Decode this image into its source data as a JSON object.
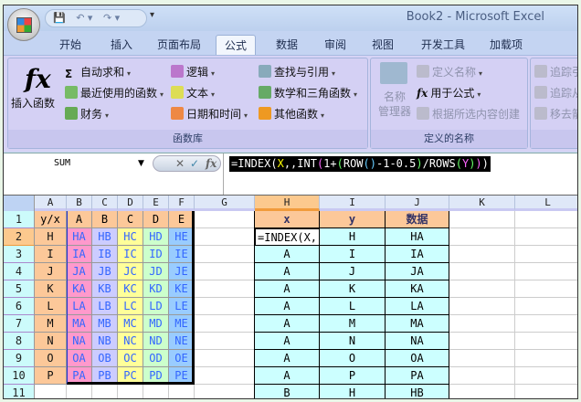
{
  "window": {
    "title": "Book2 - Microsoft Excel"
  },
  "qat": {
    "save": "💾",
    "undo": "↶ ▾",
    "redo": "↷ ▾",
    "more": "▾"
  },
  "tabs": [
    "开始",
    "插入",
    "页面布局",
    "公式",
    "数据",
    "审阅",
    "视图",
    "开发工具",
    "加载项"
  ],
  "active_tab": "公式",
  "ribbon": {
    "function_library": {
      "label": "函数库",
      "insert_function": "插入函数",
      "fx": "fx",
      "items": [
        "自动求和",
        "最近使用的函数",
        "财务",
        "逻辑",
        "文本",
        "日期和时间",
        "查找与引用",
        "数学和三角函数",
        "其他函数"
      ]
    },
    "defined_names": {
      "label": "定义的名称",
      "name_manager": "名称\n管理器",
      "define_name": "定义名称",
      "use_in_formula": "用于公式",
      "create_from_selection": "根据所选内容创建"
    },
    "auditing": {
      "items": [
        "追踪引",
        "追踪从",
        "移去箭"
      ]
    }
  },
  "formula_bar": {
    "name_box": "SUM",
    "cancel": "✕",
    "enter": "✓",
    "fx": "fx",
    "formula_parts": [
      [
        "=INDEX(",
        "#ffffff"
      ],
      [
        "X",
        "#ffff00"
      ],
      [
        ",,INT",
        "#ffffff"
      ],
      [
        "(",
        "#ff66ff"
      ],
      [
        "1+",
        "#ffffff"
      ],
      [
        "(",
        "#66ff66"
      ],
      [
        "ROW",
        "#ffffff"
      ],
      [
        "()",
        "#66ccff"
      ],
      [
        "-1-0.5",
        "#ffffff"
      ],
      [
        ")",
        "#66ff66"
      ],
      [
        "/ROWS",
        "#ffffff"
      ],
      [
        "(",
        "#66ff66"
      ],
      [
        "Y",
        "#ff66ff"
      ],
      [
        ")",
        "#66ff66"
      ],
      [
        ")",
        "#ff66ff"
      ],
      [
        ")",
        "#ffffff"
      ]
    ]
  },
  "columns": [
    "A",
    "B",
    "C",
    "D",
    "E",
    "F",
    "G",
    "H",
    "I",
    "J",
    "K",
    "L"
  ],
  "rows": [
    "1",
    "2",
    "3",
    "4",
    "5",
    "6",
    "7",
    "8",
    "9",
    "10",
    "11"
  ],
  "selected_cell": "H2",
  "table1": {
    "header": [
      "y/x",
      "A",
      "B",
      "C",
      "D",
      "E"
    ],
    "rows": [
      [
        "H",
        "HA",
        "HB",
        "HC",
        "HD",
        "HE"
      ],
      [
        "I",
        "IA",
        "IB",
        "IC",
        "ID",
        "IE"
      ],
      [
        "J",
        "JA",
        "JB",
        "JC",
        "JD",
        "JE"
      ],
      [
        "K",
        "KA",
        "KB",
        "KC",
        "KD",
        "KE"
      ],
      [
        "L",
        "LA",
        "LB",
        "LC",
        "LD",
        "LE"
      ],
      [
        "M",
        "MA",
        "MB",
        "MC",
        "MD",
        "ME"
      ],
      [
        "N",
        "NA",
        "NB",
        "NC",
        "ND",
        "NE"
      ],
      [
        "O",
        "OA",
        "OB",
        "OC",
        "OD",
        "OE"
      ],
      [
        "P",
        "PA",
        "PB",
        "PC",
        "PD",
        "PE"
      ]
    ],
    "colors": {
      "header": "#fcc899",
      "A": "#ff99cc",
      "B": "#ccccff",
      "C": "#ffff99",
      "D": "#ccffcc",
      "E": "#99ccff",
      "text": "#3366ff"
    }
  },
  "table2": {
    "header": [
      "x",
      "y",
      "数据"
    ],
    "editing": "=INDEX(X,",
    "rows": [
      [
        "=INDEX(X,",
        "H",
        "HA"
      ],
      [
        "A",
        "I",
        "IA"
      ],
      [
        "A",
        "J",
        "JA"
      ],
      [
        "A",
        "K",
        "KA"
      ],
      [
        "A",
        "L",
        "LA"
      ],
      [
        "A",
        "M",
        "MA"
      ],
      [
        "A",
        "N",
        "NA"
      ],
      [
        "A",
        "O",
        "OA"
      ],
      [
        "A",
        "P",
        "PA"
      ],
      [
        "B",
        "H",
        "HB"
      ]
    ],
    "colors": {
      "header": "#fcc899",
      "body": "#ccffff",
      "header_text": "#333366"
    }
  }
}
